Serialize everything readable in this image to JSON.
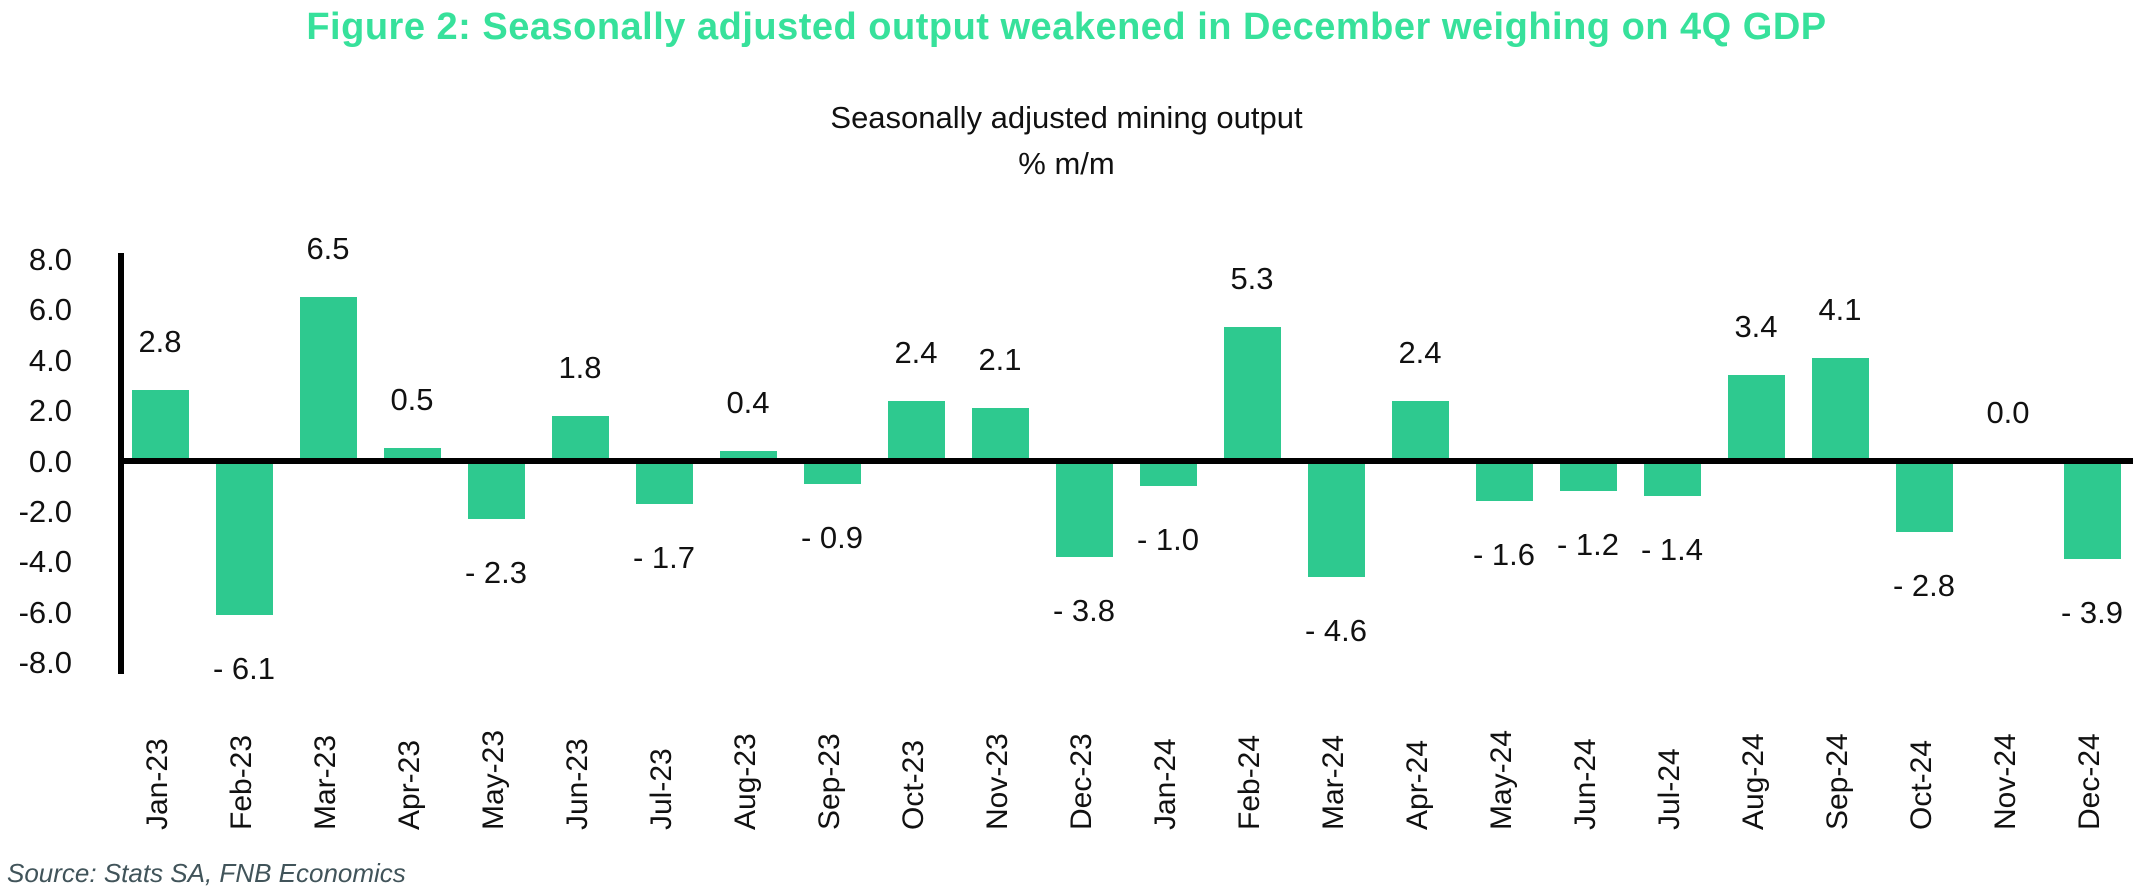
{
  "title": "Figure 2: Seasonally adjusted output weakened in December weighing on 4Q GDP",
  "source": "Source: Stats SA, FNB Economics",
  "colors": {
    "title": "#37e19b",
    "bar": "#2ec98f",
    "axis": "#000000",
    "source_text": "#41545a"
  },
  "chart_data": {
    "type": "bar",
    "title": "Seasonally adjusted mining output",
    "ylabel": "% m/m",
    "xlabel": "",
    "grid": false,
    "legend": "none",
    "ylim": [
      -8.0,
      8.0
    ],
    "ytick_step": 2.0,
    "yticks": [
      "8.0",
      "6.0",
      "4.0",
      "2.0",
      "0.0",
      "-2.0",
      "-4.0",
      "-6.0",
      "-8.0"
    ],
    "categories": [
      "Jan-23",
      "Feb-23",
      "Mar-23",
      "Apr-23",
      "May-23",
      "Jun-23",
      "Jul-23",
      "Aug-23",
      "Sep-23",
      "Oct-23",
      "Nov-23",
      "Dec-23",
      "Jan-24",
      "Feb-24",
      "Mar-24",
      "Apr-24",
      "May-24",
      "Jun-24",
      "Jul-24",
      "Aug-24",
      "Sep-24",
      "Oct-24",
      "Nov-24",
      "Dec-24"
    ],
    "values": [
      2.8,
      -6.1,
      6.5,
      0.5,
      -2.3,
      1.8,
      -1.7,
      0.4,
      -0.9,
      2.4,
      2.1,
      -3.8,
      -1.0,
      5.3,
      -4.6,
      2.4,
      -1.6,
      -1.2,
      -1.4,
      3.4,
      4.1,
      -2.8,
      0.0,
      -3.9
    ],
    "value_labels": [
      "2.8",
      "- 6.1",
      "6.5",
      "0.5",
      "- 2.3",
      "1.8",
      "- 1.7",
      "0.4",
      "- 0.9",
      "2.4",
      "2.1",
      "- 3.8",
      "- 1.0",
      "5.3",
      "- 4.6",
      "2.4",
      "- 1.6",
      "- 1.2",
      "- 1.4",
      "3.4",
      "4.1",
      "- 2.8",
      "0.0",
      "- 3.9"
    ]
  }
}
